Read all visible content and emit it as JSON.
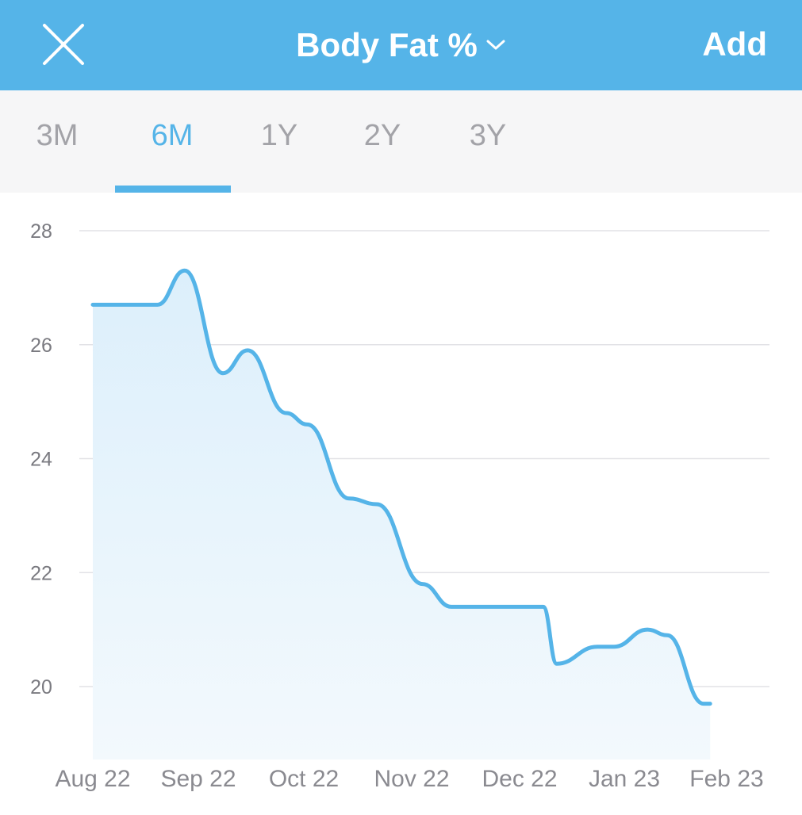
{
  "header": {
    "title": "Body Fat %",
    "add_label": "Add",
    "close_icon": "close-icon",
    "dropdown_icon": "chevron-down-icon",
    "background_color": "#55b4e8"
  },
  "tabs": {
    "items": [
      "3M",
      "6M",
      "1Y",
      "2Y",
      "3Y"
    ],
    "selected": "6M",
    "active_color": "#55b4e8"
  },
  "chart_data": {
    "type": "area",
    "x_labels": [
      "Aug 22",
      "Sep 22",
      "Oct 22",
      "Nov 22",
      "Dec 22",
      "Jan 23",
      "Feb 23"
    ],
    "y_ticks": [
      20,
      22,
      24,
      26,
      28
    ],
    "ylim": [
      18.7,
      28
    ],
    "grid": true,
    "line_color": "#55b4e8",
    "points": [
      {
        "x": "2022-08-01",
        "y": 26.7
      },
      {
        "x": "2022-08-20",
        "y": 26.7
      },
      {
        "x": "2022-08-28",
        "y": 27.3
      },
      {
        "x": "2022-09-08",
        "y": 25.5
      },
      {
        "x": "2022-09-15",
        "y": 25.9
      },
      {
        "x": "2022-09-26",
        "y": 24.8
      },
      {
        "x": "2022-10-02",
        "y": 24.6
      },
      {
        "x": "2022-10-14",
        "y": 23.3
      },
      {
        "x": "2022-10-22",
        "y": 23.2
      },
      {
        "x": "2022-11-04",
        "y": 21.8
      },
      {
        "x": "2022-11-12",
        "y": 21.4
      },
      {
        "x": "2022-12-08",
        "y": 21.4
      },
      {
        "x": "2022-12-12",
        "y": 20.4
      },
      {
        "x": "2022-12-24",
        "y": 20.7
      },
      {
        "x": "2022-12-29",
        "y": 20.7
      },
      {
        "x": "2023-01-08",
        "y": 21.0
      },
      {
        "x": "2023-01-14",
        "y": 20.9
      },
      {
        "x": "2023-01-25",
        "y": 19.7
      },
      {
        "x": "2023-01-27",
        "y": 19.7
      }
    ]
  }
}
